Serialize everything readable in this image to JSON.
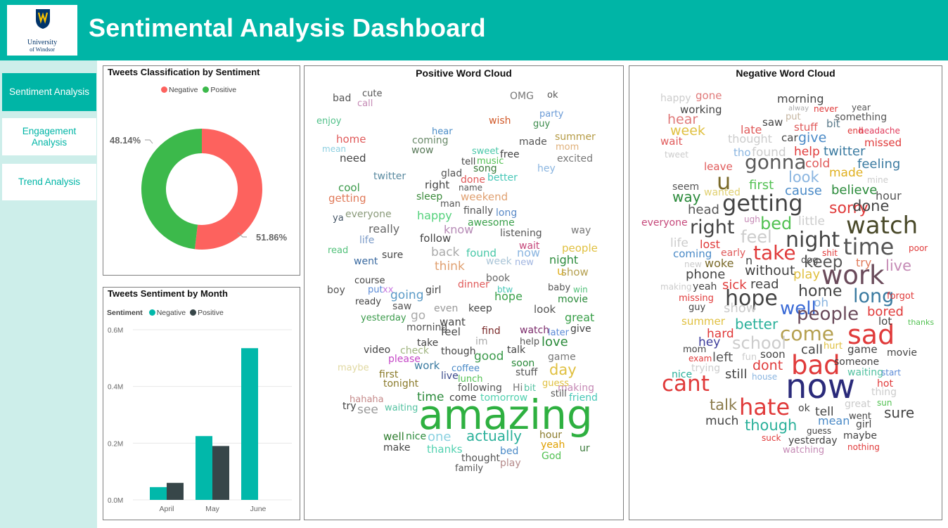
{
  "header": {
    "title": "Sentimental Analysis Dashboard",
    "logo_line1": "University",
    "logo_line2": "of Windsor"
  },
  "nav": [
    {
      "label": "Sentiment Analysis"
    },
    {
      "label": "Engagement Analysis"
    },
    {
      "label": "Trend Analysis"
    }
  ],
  "donut": {
    "title": "Tweets Classification by Sentiment",
    "legend": [
      "Negative",
      "Positive"
    ],
    "neg_label": "51.86%",
    "pos_label": "48.14%"
  },
  "bars": {
    "title": "Tweets Sentiment by Month",
    "legend_title": "Sentiment",
    "legend": [
      "Negative",
      "Positive"
    ]
  },
  "positive_cloud": {
    "title": "Positive Word Cloud",
    "words": [
      [
        "bad",
        "#555555",
        14
      ],
      [
        "cute",
        "#555555",
        13
      ],
      [
        "call",
        "#c58ab5",
        13
      ],
      [
        "OMG",
        "#777777",
        14
      ],
      [
        "ok",
        "#555555",
        13
      ],
      [
        "party",
        "#6a9ad6",
        13
      ],
      [
        "enjoy",
        "#52c18a",
        13
      ],
      [
        "wish",
        "#d15a2a",
        14
      ],
      [
        "guy",
        "#3a8a4a",
        13
      ],
      [
        "hear",
        "#4a8cc7",
        13
      ],
      [
        "home",
        "#e05a5a",
        15
      ],
      [
        "coming",
        "#6a8a6a",
        14
      ],
      [
        "made",
        "#555555",
        14
      ],
      [
        "summer",
        "#b59b45",
        14
      ],
      [
        "mean",
        "#8dcfe0",
        12
      ],
      [
        "wow",
        "#5a7a5a",
        14
      ],
      [
        "mom",
        "#e0b07a",
        13
      ],
      [
        "need",
        "#444444",
        15
      ],
      [
        "sweet",
        "#47c7a7",
        13
      ],
      [
        "free",
        "#444444",
        14
      ],
      [
        "excited",
        "#777777",
        14
      ],
      [
        "tell",
        "#444444",
        13
      ],
      [
        "music",
        "#52c152",
        13
      ],
      [
        "song",
        "#3a7a3a",
        14
      ],
      [
        "hey",
        "#8ab5e0",
        14
      ],
      [
        "twitter",
        "#5a8aa0",
        14
      ],
      [
        "glad",
        "#555555",
        14
      ],
      [
        "done",
        "#e05a5a",
        14
      ],
      [
        "better",
        "#47c7b7",
        14
      ],
      [
        "right",
        "#444444",
        15
      ],
      [
        "name",
        "#555555",
        12
      ],
      [
        "cool",
        "#3a9a4a",
        15
      ],
      [
        "sleep",
        "#3a8a3a",
        14
      ],
      [
        "weekend",
        "#e0a070",
        15
      ],
      [
        "getting",
        "#e07a5a",
        15
      ],
      [
        "man",
        "#555555",
        13
      ],
      [
        "finally",
        "#555555",
        14
      ],
      [
        "everyone",
        "#8a9a7a",
        14
      ],
      [
        "happy",
        "#52d17a",
        16
      ],
      [
        "long",
        "#5a8ac7",
        14
      ],
      [
        "ya",
        "#445566",
        13
      ],
      [
        "awesome",
        "#3aa04a",
        14
      ],
      [
        "really",
        "#666666",
        16
      ],
      [
        "know",
        "#b58ab5",
        16
      ],
      [
        "life",
        "#7a9ac7",
        14
      ],
      [
        "listening",
        "#555555",
        14
      ],
      [
        "way",
        "#777777",
        14
      ],
      [
        "follow",
        "#444444",
        15
      ],
      [
        "wait",
        "#c5477a",
        14
      ],
      [
        "read",
        "#52c17a",
        13
      ],
      [
        "back",
        "#aaaaaa",
        17
      ],
      [
        "found",
        "#47c7a7",
        15
      ],
      [
        "now",
        "#8ab5e0",
        16
      ],
      [
        "people",
        "#e0c040",
        15
      ],
      [
        "sure",
        "#444444",
        14
      ],
      [
        "week",
        "#aac5d7",
        14
      ],
      [
        "new",
        "#a0b5e0",
        13
      ],
      [
        "night",
        "#2a8a3a",
        16
      ],
      [
        "went",
        "#3a6aa0",
        14
      ],
      [
        "think",
        "#e0a070",
        17
      ],
      [
        "u",
        "#e0b020",
        16
      ],
      [
        "show",
        "#b5a050",
        15
      ],
      [
        "book",
        "#666666",
        14
      ],
      [
        "course",
        "#444444",
        13
      ],
      [
        "put",
        "#5a8ad6",
        13
      ],
      [
        "xx",
        "#c77ae0",
        13
      ],
      [
        "dinner",
        "#e05a5a",
        14
      ],
      [
        "btw",
        "#47c7b7",
        12
      ],
      [
        "baby",
        "#555555",
        13
      ],
      [
        "win",
        "#52c17a",
        12
      ],
      [
        "boy",
        "#555555",
        14
      ],
      [
        "going",
        "#5a9ac7",
        17
      ],
      [
        "girl",
        "#444444",
        14
      ],
      [
        "hope",
        "#3aa04a",
        16
      ],
      [
        "movie",
        "#2a8a3a",
        14
      ],
      [
        "ready",
        "#444444",
        13
      ],
      [
        "saw",
        "#555555",
        14
      ],
      [
        "even",
        "#999999",
        14
      ],
      [
        "keep",
        "#444444",
        14
      ],
      [
        "look",
        "#555555",
        15
      ],
      [
        "yesterday",
        "#3a9a4a",
        13
      ],
      [
        "go",
        "#aaaaaa",
        17
      ],
      [
        "want",
        "#444444",
        15
      ],
      [
        "great",
        "#3aa04a",
        16
      ],
      [
        "morning",
        "#555555",
        14
      ],
      [
        "feel",
        "#444444",
        15
      ],
      [
        "find",
        "#7a2a2a",
        14
      ],
      [
        "watch",
        "#7a2a6a",
        14
      ],
      [
        "later",
        "#5a8ad6",
        13
      ],
      [
        "give",
        "#444444",
        14
      ],
      [
        "take",
        "#444444",
        14
      ],
      [
        "im",
        "#aaaaaa",
        14
      ],
      [
        "help",
        "#555555",
        13
      ],
      [
        "love",
        "#2a8a3a",
        18
      ],
      [
        "video",
        "#444444",
        14
      ],
      [
        "check",
        "#a0b580",
        14
      ],
      [
        "though",
        "#444444",
        14
      ],
      [
        "talk",
        "#444444",
        14
      ],
      [
        "maybe",
        "#e0d8a0",
        13
      ],
      [
        "please",
        "#c547c7",
        14
      ],
      [
        "good",
        "#3a9a4a",
        17
      ],
      [
        "game",
        "#777777",
        14
      ],
      [
        "work",
        "#3a7aa0",
        15
      ],
      [
        "coffee",
        "#4a8ac7",
        13
      ],
      [
        "soon",
        "#2a8a3a",
        14
      ],
      [
        "day",
        "#e0c040",
        21
      ],
      [
        "first",
        "#8a7a2a",
        14
      ],
      [
        "live",
        "#3a4a8a",
        14
      ],
      [
        "stuff",
        "#555555",
        14
      ],
      [
        "tonight",
        "#8a7a2a",
        14
      ],
      [
        "lunch",
        "#52c152",
        13
      ],
      [
        "following",
        "#555555",
        14
      ],
      [
        "Hi",
        "#777777",
        14
      ],
      [
        "bit",
        "#52c1a0",
        13
      ],
      [
        "making",
        "#c58ab5",
        14
      ],
      [
        "guess",
        "#e0c040",
        13
      ],
      [
        "still",
        "#555555",
        13
      ],
      [
        "friend",
        "#47c7b7",
        14
      ],
      [
        "hahaha",
        "#c58a8a",
        13
      ],
      [
        "come",
        "#444444",
        14
      ],
      [
        "tomorrow",
        "#52d1b0",
        14
      ],
      [
        "time",
        "#2a8a3a",
        17
      ],
      [
        "try",
        "#444444",
        14
      ],
      [
        "waiting",
        "#52c1a0",
        13
      ],
      [
        "see",
        "#999999",
        17
      ],
      [
        "amazing",
        "#2eb040",
        58
      ],
      [
        "well",
        "#2a7a2a",
        15
      ],
      [
        "nice",
        "#2a8a3a",
        14
      ],
      [
        "one",
        "#8ad1e0",
        18
      ],
      [
        "actually",
        "#2ab09a",
        20
      ],
      [
        "hour",
        "#8a7a2a",
        14
      ],
      [
        "make",
        "#444444",
        14
      ],
      [
        "thanks",
        "#52d1b0",
        15
      ],
      [
        "yeah",
        "#e0a000",
        14
      ],
      [
        "ur",
        "#3a7a3a",
        14
      ],
      [
        "bed",
        "#4a8ac7",
        14
      ],
      [
        "God",
        "#52c152",
        14
      ],
      [
        "thought",
        "#555555",
        14
      ],
      [
        "play",
        "#b58a8a",
        14
      ],
      [
        "family",
        "#555555",
        13
      ]
    ]
  },
  "negative_cloud": {
    "title": "Negative Word Cloud",
    "words": [
      [
        "happy",
        "#cccccc",
        14
      ],
      [
        "gone",
        "#e07a7a",
        15
      ],
      [
        "morning",
        "#444444",
        16
      ],
      [
        "alway",
        "#aaaaaa",
        10
      ],
      [
        "never",
        "#e03a3a",
        12
      ],
      [
        "year",
        "#555555",
        12
      ],
      [
        "hear",
        "#e07a7a",
        19
      ],
      [
        "working",
        "#444444",
        15
      ],
      [
        "put",
        "#c5b5a0",
        13
      ],
      [
        "something",
        "#555555",
        14
      ],
      [
        "week",
        "#e0c040",
        19
      ],
      [
        "late",
        "#e05a5a",
        16
      ],
      [
        "saw",
        "#444444",
        15
      ],
      [
        "stuff",
        "#e05a5a",
        15
      ],
      [
        "bit",
        "#5a7a8a",
        15
      ],
      [
        "end",
        "#e03a3a",
        12
      ],
      [
        "headache",
        "#e03a5a",
        12
      ],
      [
        "wait",
        "#e05a5a",
        15
      ],
      [
        "thought",
        "#cccccc",
        16
      ],
      [
        "car",
        "#444444",
        15
      ],
      [
        "give",
        "#4a8ac7",
        19
      ],
      [
        "missed",
        "#e03a3a",
        15
      ],
      [
        "tweet",
        "#cccccc",
        12
      ],
      [
        "tho",
        "#8ab5e0",
        15
      ],
      [
        "found",
        "#cccccc",
        17
      ],
      [
        "help",
        "#e03a3a",
        17
      ],
      [
        "twitter",
        "#3a7aa0",
        18
      ],
      [
        "leave",
        "#e05a5a",
        15
      ],
      [
        "gonna",
        "#5a5a5a",
        28
      ],
      [
        "cold",
        "#e05a5a",
        17
      ],
      [
        "feeling",
        "#3a7aa0",
        18
      ],
      [
        "u",
        "#7a6a2a",
        32
      ],
      [
        "look",
        "#8ab5e0",
        21
      ],
      [
        "made",
        "#e0b020",
        17
      ],
      [
        "first",
        "#52c152",
        18
      ],
      [
        "cause",
        "#4a8ac7",
        18
      ],
      [
        "mine",
        "#cccccc",
        12
      ],
      [
        "seem",
        "#555555",
        14
      ],
      [
        "wanted",
        "#e0d070",
        14
      ],
      [
        "believe",
        "#2a8a3a",
        18
      ],
      [
        "way",
        "#2a8a3a",
        20
      ],
      [
        "hour",
        "#555555",
        16
      ],
      [
        "getting",
        "#444444",
        32
      ],
      [
        "head",
        "#555555",
        18
      ],
      [
        "sorry",
        "#e03a3a",
        22
      ],
      [
        "done",
        "#444444",
        21
      ],
      [
        "little",
        "#cccccc",
        17
      ],
      [
        "everyone",
        "#c5477a",
        14
      ],
      [
        "ugh",
        "#c58ab5",
        12
      ],
      [
        "right",
        "#444444",
        27
      ],
      [
        "bed",
        "#52c152",
        24
      ],
      [
        "watch",
        "#4a4a2a",
        34
      ],
      [
        "feel",
        "#cccccc",
        24
      ],
      [
        "life",
        "#cccccc",
        17
      ],
      [
        "night",
        "#444444",
        30
      ],
      [
        "lost",
        "#e03a3a",
        16
      ],
      [
        "time",
        "#555555",
        32
      ],
      [
        "early",
        "#e05a5a",
        14
      ],
      [
        "take",
        "#e03a3a",
        28
      ],
      [
        "poor",
        "#e03a3a",
        12
      ],
      [
        "coming",
        "#4a8ac7",
        15
      ],
      [
        "dog",
        "#444444",
        13
      ],
      [
        "shit",
        "#e03a3a",
        12
      ],
      [
        "new",
        "#cccccc",
        12
      ],
      [
        "woke",
        "#7a6a2a",
        16
      ],
      [
        "n",
        "#444444",
        16
      ],
      [
        "keep",
        "#555555",
        23
      ],
      [
        "try",
        "#e07a5a",
        16
      ],
      [
        "live",
        "#c58ab5",
        21
      ],
      [
        "phone",
        "#444444",
        18
      ],
      [
        "without",
        "#444444",
        19
      ],
      [
        "play",
        "#e0c040",
        18
      ],
      [
        "work",
        "#6a4a5a",
        37
      ],
      [
        "making",
        "#cccccc",
        12
      ],
      [
        "yeah",
        "#444444",
        14
      ],
      [
        "sick",
        "#e03a3a",
        18
      ],
      [
        "read",
        "#444444",
        18
      ],
      [
        "home",
        "#444444",
        22
      ],
      [
        "missing",
        "#e03a3a",
        13
      ],
      [
        "hope",
        "#444444",
        30
      ],
      [
        "oh",
        "#8ab5e0",
        17
      ],
      [
        "long",
        "#3a7aa0",
        27
      ],
      [
        "forgot",
        "#e03a3a",
        13
      ],
      [
        "guy",
        "#444444",
        13
      ],
      [
        "show",
        "#cccccc",
        18
      ],
      [
        "well",
        "#3a6ad6",
        26
      ],
      [
        "people",
        "#6a4a5a",
        26
      ],
      [
        "bored",
        "#e03a3a",
        18
      ],
      [
        "summer",
        "#e0c040",
        15
      ],
      [
        "better",
        "#2ab09a",
        20
      ],
      [
        "come",
        "#b5a050",
        28
      ],
      [
        "sad",
        "#e03a3a",
        38
      ],
      [
        "thanks",
        "#52c152",
        11
      ],
      [
        "hard",
        "#e03a3a",
        17
      ],
      [
        "lot",
        "#444444",
        15
      ],
      [
        "hey",
        "#3a3a9a",
        17
      ],
      [
        "school",
        "#cccccc",
        24
      ],
      [
        "hurt",
        "#e0c040",
        13
      ],
      [
        "mom",
        "#444444",
        13
      ],
      [
        "exam",
        "#e03a3a",
        12
      ],
      [
        "left",
        "#555555",
        18
      ],
      [
        "fun",
        "#cccccc",
        13
      ],
      [
        "call",
        "#444444",
        18
      ],
      [
        "game",
        "#444444",
        15
      ],
      [
        "movie",
        "#444444",
        14
      ],
      [
        "soon",
        "#444444",
        15
      ],
      [
        "bad",
        "#e03a3a",
        37
      ],
      [
        "someone",
        "#444444",
        14
      ],
      [
        "nice",
        "#2ab09a",
        14
      ],
      [
        "trying",
        "#cccccc",
        14
      ],
      [
        "dont",
        "#e03a3a",
        19
      ],
      [
        "waiting",
        "#52c1a0",
        14
      ],
      [
        "start",
        "#5a8ad6",
        12
      ],
      [
        "still",
        "#444444",
        18
      ],
      [
        "house",
        "#8ab5e0",
        12
      ],
      [
        "cant",
        "#e03a3a",
        31
      ],
      [
        "now",
        "#2a2a7a",
        48
      ],
      [
        "hot",
        "#e03a3a",
        14
      ],
      [
        "thing",
        "#cccccc",
        14
      ],
      [
        "sun",
        "#52c152",
        12
      ],
      [
        "great",
        "#cccccc",
        14
      ],
      [
        "talk",
        "#8a7a4a",
        21
      ],
      [
        "hate",
        "#e03a3a",
        32
      ],
      [
        "ok",
        "#444444",
        14
      ],
      [
        "tell",
        "#444444",
        17
      ],
      [
        "sure",
        "#444444",
        20
      ],
      [
        "went",
        "#444444",
        13
      ],
      [
        "much",
        "#444444",
        17
      ],
      [
        "though",
        "#2ab09a",
        21
      ],
      [
        "mean",
        "#4a8ac7",
        16
      ],
      [
        "girl",
        "#444444",
        14
      ],
      [
        "guess",
        "#444444",
        12
      ],
      [
        "maybe",
        "#444444",
        14
      ],
      [
        "suck",
        "#e03a3a",
        12
      ],
      [
        "yesterday",
        "#444444",
        14
      ],
      [
        "nothing",
        "#e03a3a",
        12
      ],
      [
        "watching",
        "#c58ab5",
        13
      ]
    ]
  },
  "colors": {
    "brand": "#00b5a6",
    "sidebar_bg": "#cdeeea",
    "negative_donut": "#fd625e",
    "positive_donut": "#3cb94b",
    "bar_negative": "#01b8aa",
    "bar_positive": "#374649"
  },
  "chart_data": [
    {
      "type": "pie",
      "title": "Tweets Classification by Sentiment",
      "categories": [
        "Negative",
        "Positive"
      ],
      "values": [
        51.86,
        48.14
      ]
    },
    {
      "type": "bar",
      "title": "Tweets Sentiment by Month",
      "categories": [
        "April",
        "May",
        "June"
      ],
      "series": [
        {
          "name": "Negative",
          "values": [
            0.045,
            0.225,
            0.535
          ]
        },
        {
          "name": "Positive",
          "values": [
            0.06,
            0.19,
            0.0
          ]
        }
      ],
      "ylim": [
        0,
        0.6
      ],
      "yticks": [
        "0.0M",
        "0.2M",
        "0.4M",
        "0.6M"
      ],
      "legend_title": "Sentiment",
      "legend": "top-left"
    }
  ]
}
